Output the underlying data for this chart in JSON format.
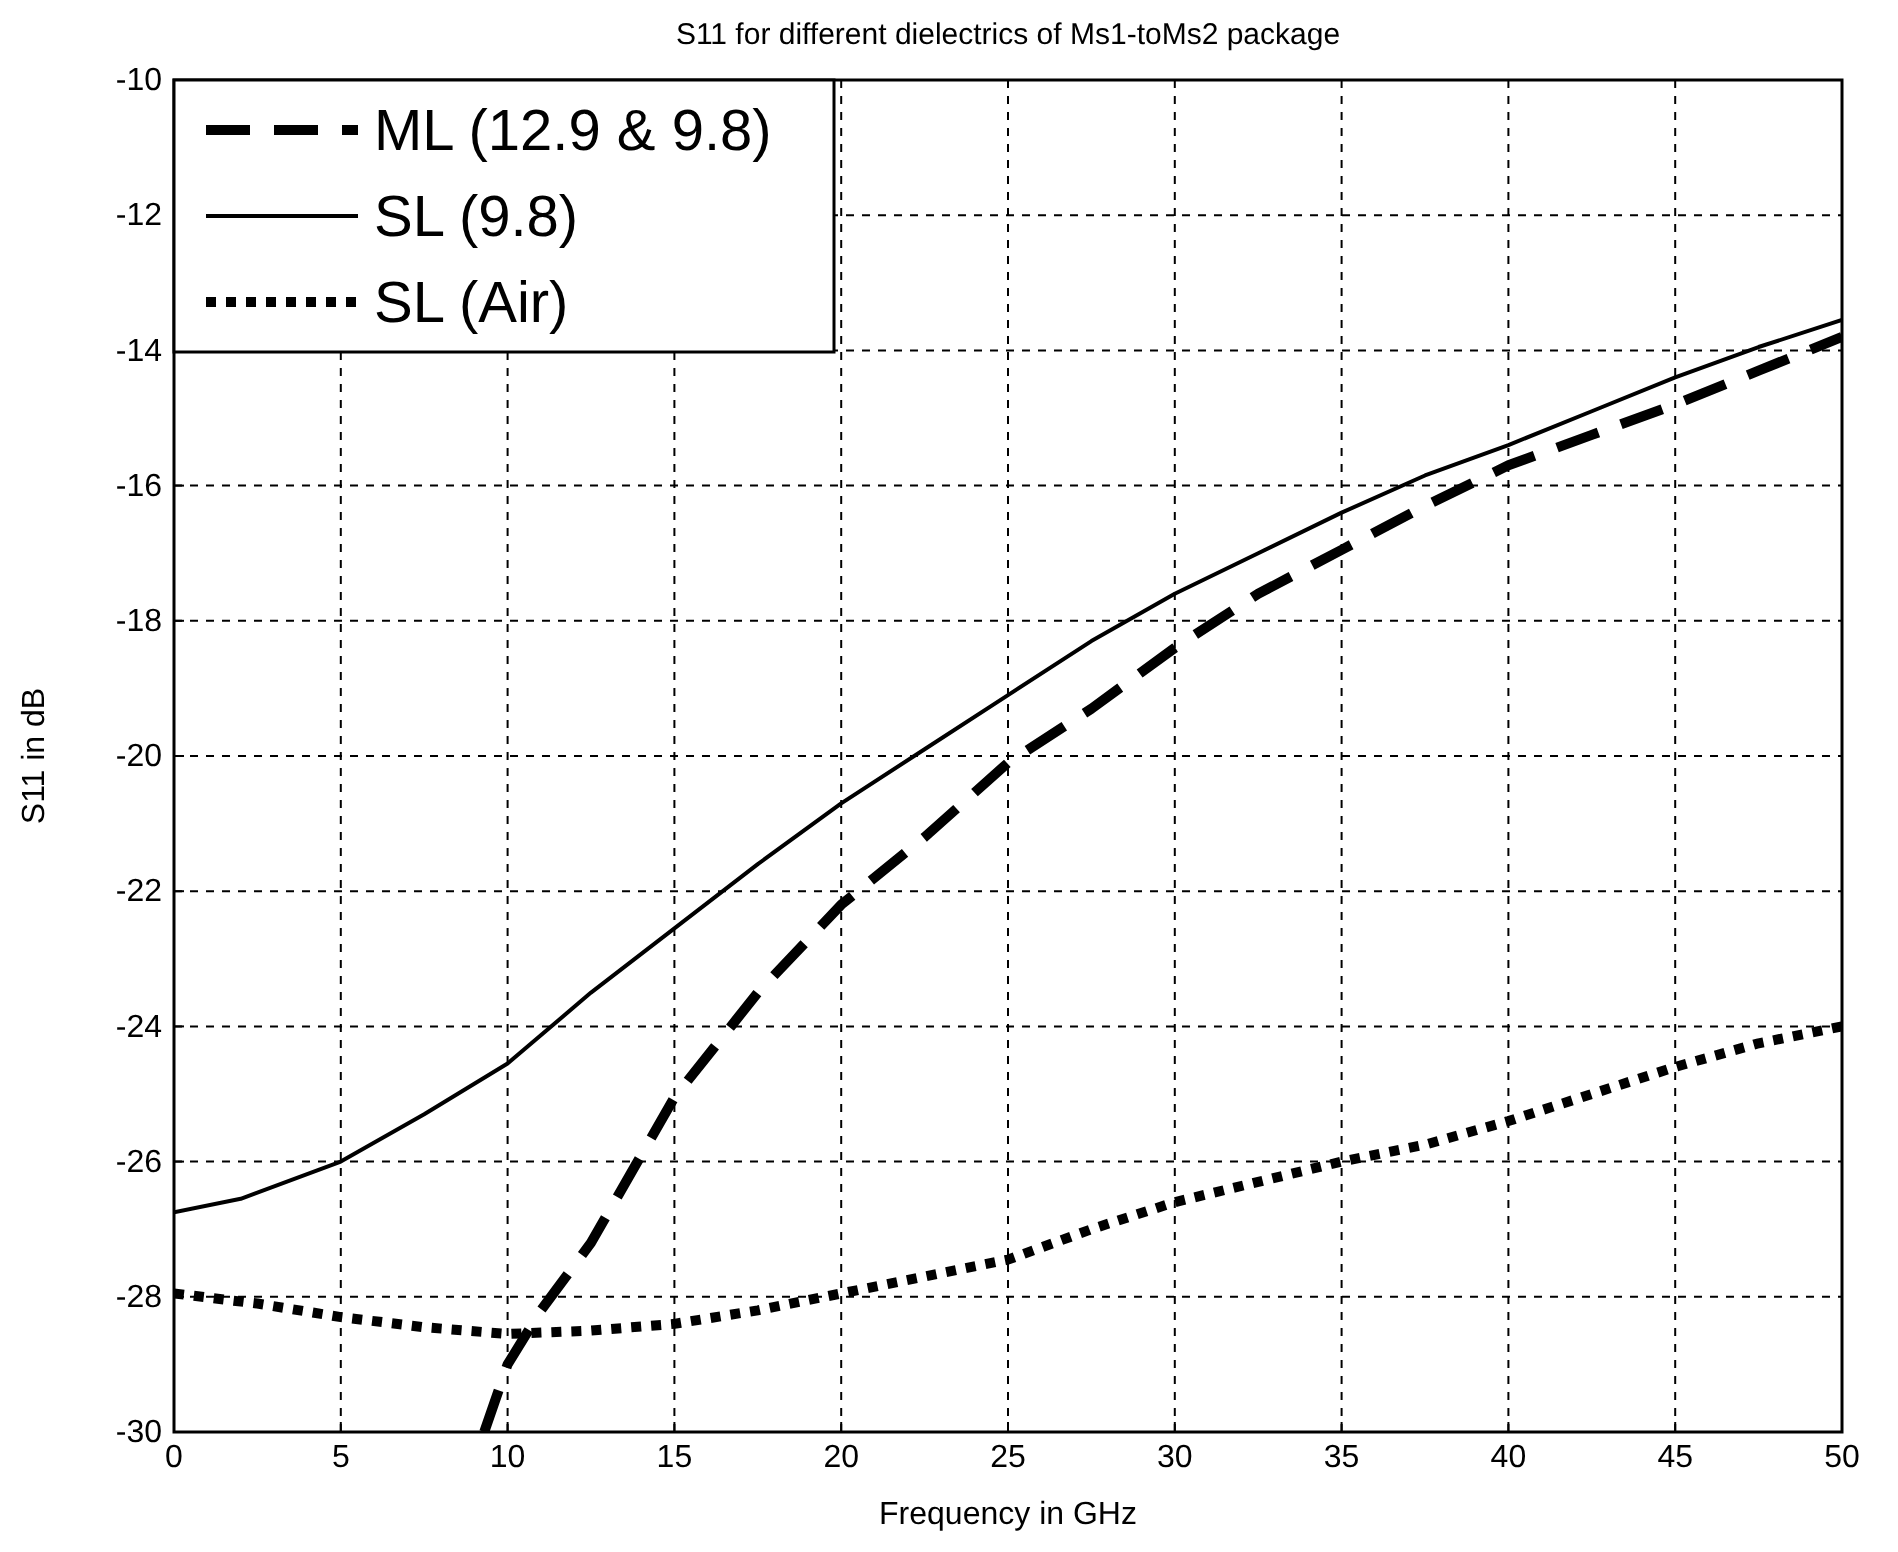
{
  "chart_data": {
    "type": "line",
    "title": "S11 for different dielectrics of Ms1-toMs2 package",
    "xlabel": "Frequency in GHz",
    "ylabel": "S11  in dB",
    "xlim": [
      0,
      50
    ],
    "xticks": [
      0,
      5,
      10,
      15,
      20,
      25,
      30,
      35,
      40,
      45,
      50
    ],
    "ylim": [
      -30,
      -10
    ],
    "yticks": [
      -30,
      -28,
      -26,
      -24,
      -22,
      -20,
      -18,
      -16,
      -14,
      -12,
      -10
    ],
    "grid": true,
    "legend": "top left",
    "marker": "none",
    "series": [
      {
        "name": "ML (12.9 & 9.8)",
        "color": "#000000",
        "line_style": "dashed",
        "x": [
          9.3,
          10,
          11,
          12.5,
          15,
          17.5,
          20,
          22.5,
          25,
          27.5,
          30,
          32.5,
          35,
          37.5,
          40,
          42.5,
          45,
          47.5,
          50
        ],
        "values": [
          -30,
          -29,
          -28.2,
          -27.2,
          -25.05,
          -23.5,
          -22.2,
          -21.2,
          -20.1,
          -19.3,
          -18.4,
          -17.6,
          -16.95,
          -16.3,
          -15.7,
          -15.25,
          -14.8,
          -14.3,
          -13.8
        ]
      },
      {
        "name": "SL (9.8)",
        "color": "#000000",
        "line_style": "solid",
        "x": [
          0,
          2,
          5,
          7.5,
          10,
          12.5,
          15,
          17.5,
          20,
          22.5,
          25,
          27.5,
          30,
          32.5,
          35,
          37.5,
          40,
          42.5,
          45,
          47.5,
          50
        ],
        "values": [
          -26.75,
          -26.55,
          -26,
          -25.3,
          -24.55,
          -23.5,
          -22.55,
          -21.6,
          -20.7,
          -19.9,
          -19.1,
          -18.3,
          -17.6,
          -17,
          -16.4,
          -15.85,
          -15.4,
          -14.9,
          -14.4,
          -13.95,
          -13.55
        ]
      },
      {
        "name": "SL (Air)",
        "color": "#000000",
        "line_style": "dotted",
        "x": [
          0,
          2.5,
          5,
          7.5,
          10,
          12.5,
          15,
          17.5,
          20,
          22.5,
          25,
          27.5,
          30,
          32.5,
          35,
          37.5,
          40,
          42.5,
          45,
          47.5,
          50
        ],
        "values": [
          -27.95,
          -28.1,
          -28.3,
          -28.45,
          -28.55,
          -28.5,
          -28.4,
          -28.2,
          -27.95,
          -27.7,
          -27.45,
          -27,
          -26.6,
          -26.3,
          -26,
          -25.75,
          -25.4,
          -25,
          -24.6,
          -24.25,
          -24
        ]
      }
    ]
  }
}
